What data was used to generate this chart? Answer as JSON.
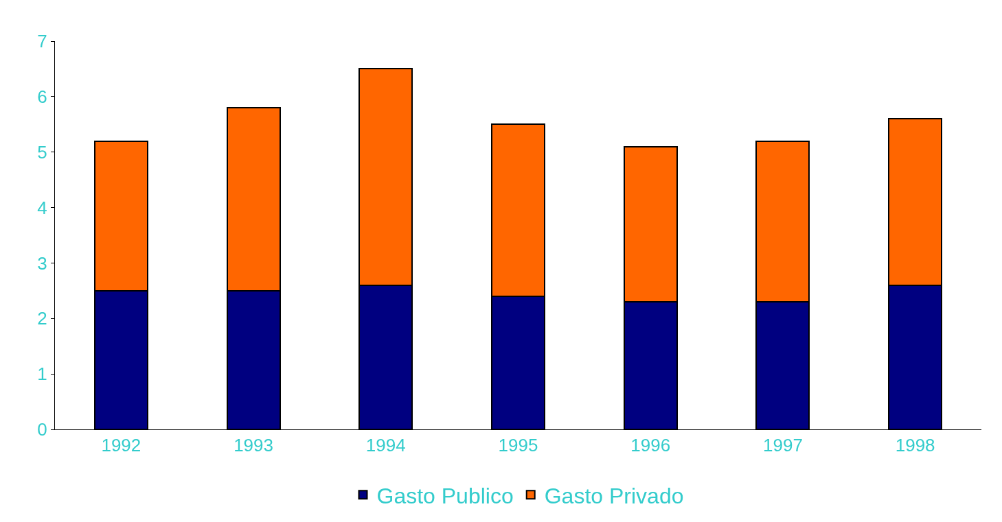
{
  "chart_data": {
    "type": "bar",
    "stacked": true,
    "categories": [
      "1992",
      "1993",
      "1994",
      "1995",
      "1996",
      "1997",
      "1998"
    ],
    "series": [
      {
        "name": "Gasto Publico",
        "color": "#000080",
        "values": [
          2.5,
          2.5,
          2.6,
          2.4,
          2.3,
          2.3,
          2.6
        ]
      },
      {
        "name": "Gasto Privado",
        "color": "#ff6600",
        "values": [
          2.7,
          3.3,
          3.9,
          3.1,
          2.8,
          2.9,
          3.0
        ]
      }
    ],
    "ylim": [
      0,
      7
    ],
    "yticks": [
      0,
      1,
      2,
      3,
      4,
      5,
      6,
      7
    ],
    "legend": "bottom"
  }
}
